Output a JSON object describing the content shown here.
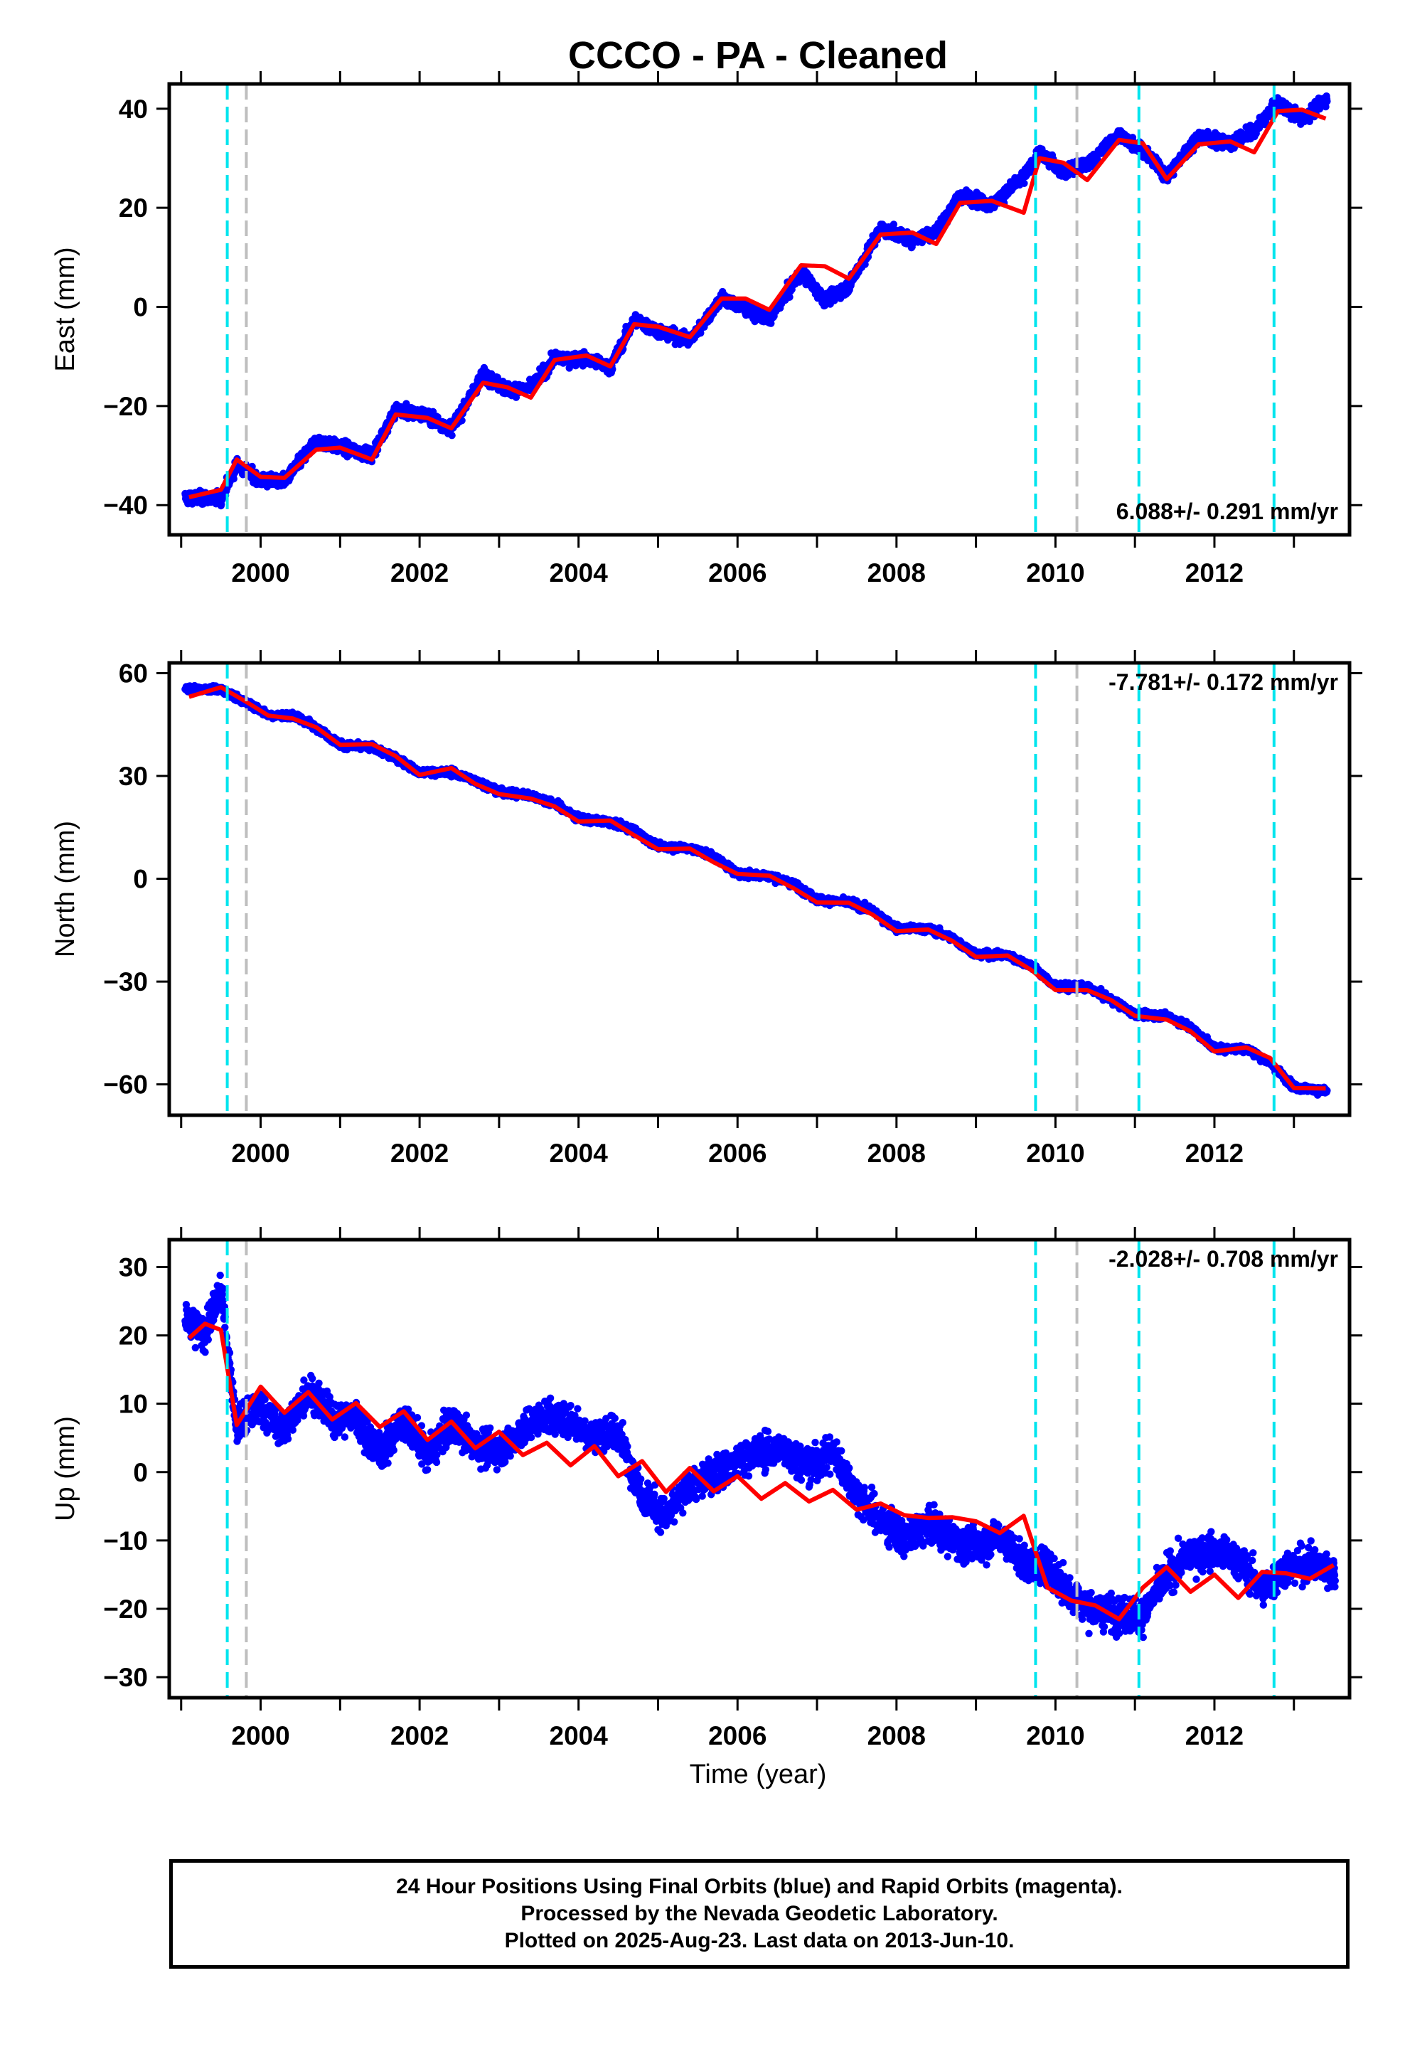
{
  "page_title": "CCCO  - PA - Cleaned",
  "xlabel": "Time (year)",
  "footer": {
    "line1": "24 Hour Positions Using Final Orbits (blue) and Rapid Orbits (magenta).",
    "line2": "Processed by the Nevada Geodetic Laboratory.",
    "line3": "Plotted on 2025-Aug-23. Last data on 2013-Jun-10."
  },
  "colors": {
    "data_points": "#0000ff",
    "model_fit": "#ff0000",
    "equipment_change": "#00e5ee",
    "other_event": "#bebebe"
  },
  "chart_data": [
    {
      "type": "scatter",
      "ylabel": "East (mm)",
      "rate_label": "6.088+/- 0.291 mm/yr",
      "xlim": [
        1998.85,
        2013.7
      ],
      "ylim": [
        -46,
        45
      ],
      "xticks": [
        2000,
        2002,
        2004,
        2006,
        2008,
        2010,
        2012
      ],
      "yticks": [
        -40,
        -20,
        0,
        20,
        40
      ],
      "grid": false,
      "series": [
        {
          "name": "Final Orbits (blue)",
          "x": [
            1999.1,
            1999.5,
            1999.7,
            2000.0,
            2000.3,
            2000.7,
            2001.0,
            2001.4,
            2001.7,
            2002.1,
            2002.4,
            2002.8,
            2003.1,
            2003.4,
            2003.7,
            2004.1,
            2004.4,
            2004.7,
            2005.0,
            2005.4,
            2005.8,
            2006.1,
            2006.4,
            2006.8,
            2007.1,
            2007.4,
            2007.8,
            2008.2,
            2008.5,
            2008.8,
            2009.2,
            2009.6,
            2009.8,
            2010.1,
            2010.4,
            2010.8,
            2011.1,
            2011.4,
            2011.8,
            2012.2,
            2012.5,
            2012.8,
            2013.1,
            2013.4
          ],
          "y": [
            -38.5,
            -38.7,
            -31.8,
            -35.1,
            -35.2,
            -27.0,
            -28.3,
            -29.9,
            -20.7,
            -22.0,
            -24.6,
            -13.6,
            -16.7,
            -16.4,
            -10.4,
            -10.5,
            -12.3,
            -2.5,
            -4.8,
            -6.9,
            1.8,
            -0.5,
            -2.5,
            7.2,
            1.2,
            4.2,
            15.8,
            13.6,
            15.2,
            22.7,
            20.5,
            26.3,
            31.0,
            27.1,
            28.8,
            34.7,
            31.7,
            26.3,
            34.4,
            33.0,
            35.5,
            41.2,
            37.8,
            41.8
          ]
        },
        {
          "name": "Model fit",
          "x": [
            1999.1,
            1999.5,
            1999.7,
            2000.0,
            2000.3,
            2000.7,
            2001.0,
            2001.4,
            2001.7,
            2002.1,
            2002.4,
            2002.8,
            2003.1,
            2003.4,
            2003.7,
            2004.1,
            2004.4,
            2004.7,
            2005.0,
            2005.4,
            2005.8,
            2006.1,
            2006.4,
            2006.8,
            2007.1,
            2007.4,
            2007.8,
            2008.2,
            2008.5,
            2008.8,
            2009.2,
            2009.6,
            2009.8,
            2010.1,
            2010.4,
            2010.8,
            2011.1,
            2011.4,
            2011.8,
            2012.2,
            2012.5,
            2012.8,
            2013.1,
            2013.4
          ],
          "y": [
            -38.4,
            -36.9,
            -30.8,
            -34.3,
            -34.5,
            -28.8,
            -28.4,
            -30.8,
            -21.7,
            -22.4,
            -24.5,
            -15.3,
            -16.2,
            -18.3,
            -10.7,
            -9.8,
            -12.0,
            -3.5,
            -4.0,
            -6.1,
            1.7,
            1.7,
            -0.6,
            8.4,
            8.2,
            5.7,
            14.6,
            15.0,
            12.7,
            21.0,
            21.4,
            19.0,
            30.0,
            29.1,
            25.6,
            33.7,
            33.0,
            25.8,
            32.8,
            33.4,
            31.2,
            39.5,
            39.8,
            38.0
          ]
        }
      ],
      "events": [
        {
          "type": "equipment_change",
          "x": 1999.58
        },
        {
          "type": "other_event",
          "x": 1999.82
        },
        {
          "type": "equipment_change",
          "x": 2009.75
        },
        {
          "type": "other_event",
          "x": 2010.27
        },
        {
          "type": "equipment_change",
          "x": 2011.05
        },
        {
          "type": "equipment_change",
          "x": 2012.75
        }
      ]
    },
    {
      "type": "scatter",
      "ylabel": "North (mm)",
      "rate_label": "-7.781+/- 0.172 mm/yr",
      "xlim": [
        1998.85,
        2013.7
      ],
      "ylim": [
        -69,
        63
      ],
      "xticks": [
        2000,
        2002,
        2004,
        2006,
        2008,
        2010,
        2012
      ],
      "yticks": [
        -60,
        -30,
        0,
        30,
        60
      ],
      "grid": false,
      "series": [
        {
          "name": "Final Orbits (blue)",
          "x": [
            1999.1,
            1999.5,
            1999.8,
            2000.1,
            2000.4,
            2000.7,
            2001.0,
            2001.4,
            2001.7,
            2002.0,
            2002.4,
            2002.7,
            2003.0,
            2003.4,
            2003.7,
            2004.0,
            2004.4,
            2004.7,
            2005.0,
            2005.4,
            2005.7,
            2006.0,
            2006.4,
            2006.7,
            2007.0,
            2007.4,
            2007.7,
            2008.0,
            2008.4,
            2008.7,
            2009.0,
            2009.4,
            2009.7,
            2010.0,
            2010.4,
            2010.7,
            2011.0,
            2011.4,
            2011.7,
            2012.0,
            2012.4,
            2012.7,
            2013.0,
            2013.4
          ],
          "y": [
            55.5,
            55.2,
            51.7,
            47.8,
            47.6,
            44.3,
            39.0,
            38.4,
            35.2,
            31.2,
            31.0,
            28.7,
            25.4,
            24.3,
            22.0,
            17.6,
            16.5,
            14.1,
            9.5,
            8.9,
            6.6,
            1.4,
            0.9,
            -1.5,
            -6.1,
            -6.9,
            -9.3,
            -14.5,
            -14.6,
            -17.3,
            -22.0,
            -22.4,
            -25.4,
            -31.5,
            -31.7,
            -35.2,
            -39.6,
            -40.0,
            -43.4,
            -49.4,
            -49.6,
            -53.6,
            -60.8,
            -62.0
          ]
        },
        {
          "name": "Model fit",
          "x": [
            1999.1,
            1999.5,
            1999.8,
            2000.1,
            2000.4,
            2000.7,
            2001.0,
            2001.4,
            2001.7,
            2002.0,
            2002.4,
            2002.7,
            2003.0,
            2003.4,
            2003.7,
            2004.0,
            2004.4,
            2004.7,
            2005.0,
            2005.4,
            2005.7,
            2006.0,
            2006.4,
            2006.7,
            2007.0,
            2007.4,
            2007.7,
            2008.0,
            2008.4,
            2008.7,
            2009.0,
            2009.4,
            2009.7,
            2010.0,
            2010.4,
            2010.7,
            2011.0,
            2011.4,
            2011.7,
            2012.0,
            2012.4,
            2012.7,
            2013.0,
            2013.4
          ],
          "y": [
            53.1,
            55.9,
            51.9,
            47.6,
            46.8,
            44.2,
            39.1,
            39.3,
            35.8,
            30.3,
            32.3,
            27.7,
            24.7,
            23.4,
            21.1,
            16.7,
            17.0,
            12.7,
            8.6,
            8.8,
            4.8,
            1.4,
            0.9,
            -2.7,
            -6.9,
            -7.0,
            -10.5,
            -15.3,
            -14.8,
            -18.1,
            -22.8,
            -22.4,
            -26.7,
            -32.5,
            -32.5,
            -35.4,
            -40.0,
            -41.1,
            -44.5,
            -50.4,
            -49.2,
            -52.3,
            -61.1,
            -61.2
          ]
        }
      ],
      "events": [
        {
          "type": "equipment_change",
          "x": 1999.58
        },
        {
          "type": "other_event",
          "x": 1999.82
        },
        {
          "type": "equipment_change",
          "x": 2009.75
        },
        {
          "type": "other_event",
          "x": 2010.27
        },
        {
          "type": "equipment_change",
          "x": 2011.05
        },
        {
          "type": "equipment_change",
          "x": 2012.75
        }
      ]
    },
    {
      "type": "scatter",
      "ylabel": "Up (mm)",
      "rate_label": "-2.028+/- 0.708 mm/yr",
      "xlim": [
        1998.85,
        2013.7
      ],
      "ylim": [
        -33,
        34
      ],
      "xticks": [
        2000,
        2002,
        2004,
        2006,
        2008,
        2010,
        2012
      ],
      "yticks": [
        -30,
        -20,
        -10,
        0,
        10,
        20,
        30
      ],
      "grid": false,
      "series": [
        {
          "name": "Final Orbits (blue)",
          "x": [
            1999.1,
            1999.3,
            1999.5,
            1999.7,
            2000.0,
            2000.3,
            2000.6,
            2000.9,
            2001.2,
            2001.5,
            2001.8,
            2002.1,
            2002.4,
            2002.7,
            2003.0,
            2003.3,
            2003.6,
            2003.9,
            2004.2,
            2004.5,
            2004.8,
            2005.1,
            2005.4,
            2005.7,
            2006.0,
            2006.3,
            2006.6,
            2006.9,
            2007.2,
            2007.5,
            2007.8,
            2008.1,
            2008.4,
            2008.7,
            2009.0,
            2009.3,
            2009.6,
            2009.9,
            2010.2,
            2010.5,
            2010.8,
            2011.1,
            2011.4,
            2011.7,
            2012.0,
            2012.3,
            2012.6,
            2012.9,
            2013.2,
            2013.5
          ],
          "y": [
            21.8,
            20.3,
            26.7,
            6.7,
            9.7,
            5.9,
            12.2,
            8.0,
            7.9,
            2.8,
            7.8,
            2.3,
            7.3,
            4.0,
            3.1,
            6.2,
            8.4,
            7.5,
            5.2,
            5.7,
            -3.2,
            -6.6,
            -2.1,
            -0.3,
            1.9,
            2.9,
            3.3,
            0.8,
            3.0,
            -3.2,
            -7.0,
            -9.6,
            -7.7,
            -9.6,
            -10.9,
            -9.2,
            -13.2,
            -13.8,
            -17.9,
            -20.3,
            -20.8,
            -20.9,
            -15.1,
            -12.0,
            -11.6,
            -12.8,
            -17.3,
            -14.0,
            -13.3,
            -14.7
          ]
        },
        {
          "name": "Model fit",
          "x": [
            1999.1,
            1999.3,
            1999.5,
            1999.7,
            2000.0,
            2000.3,
            2000.6,
            2000.9,
            2001.2,
            2001.5,
            2001.8,
            2002.1,
            2002.4,
            2002.7,
            2003.0,
            2003.3,
            2003.6,
            2003.9,
            2004.2,
            2004.5,
            2004.8,
            2005.1,
            2005.4,
            2005.7,
            2006.0,
            2006.3,
            2006.6,
            2006.9,
            2007.2,
            2007.5,
            2007.8,
            2008.1,
            2008.4,
            2008.7,
            2009.0,
            2009.3,
            2009.6,
            2009.9,
            2010.2,
            2010.5,
            2010.8,
            2011.1,
            2011.4,
            2011.7,
            2012.0,
            2012.3,
            2012.6,
            2012.9,
            2013.2,
            2013.5
          ],
          "y": [
            19.6,
            21.7,
            20.8,
            6.9,
            12.5,
            8.7,
            11.7,
            7.7,
            10.1,
            6.6,
            8.9,
            4.7,
            7.4,
            3.5,
            5.9,
            2.5,
            4.3,
            1.0,
            3.8,
            -0.6,
            1.6,
            -2.9,
            0.6,
            -2.8,
            -0.6,
            -3.9,
            -1.6,
            -4.3,
            -2.6,
            -5.5,
            -4.6,
            -6.3,
            -6.7,
            -6.6,
            -7.2,
            -8.9,
            -6.4,
            -16.9,
            -18.8,
            -19.5,
            -21.5,
            -16.9,
            -13.9,
            -17.5,
            -15.0,
            -18.4,
            -14.6,
            -14.8,
            -15.6,
            -13.6
          ]
        }
      ],
      "events": [
        {
          "type": "equipment_change",
          "x": 1999.58
        },
        {
          "type": "other_event",
          "x": 1999.82
        },
        {
          "type": "equipment_change",
          "x": 2009.75
        },
        {
          "type": "other_event",
          "x": 2010.27
        },
        {
          "type": "equipment_change",
          "x": 2011.05
        },
        {
          "type": "equipment_change",
          "x": 2012.75
        }
      ]
    }
  ]
}
